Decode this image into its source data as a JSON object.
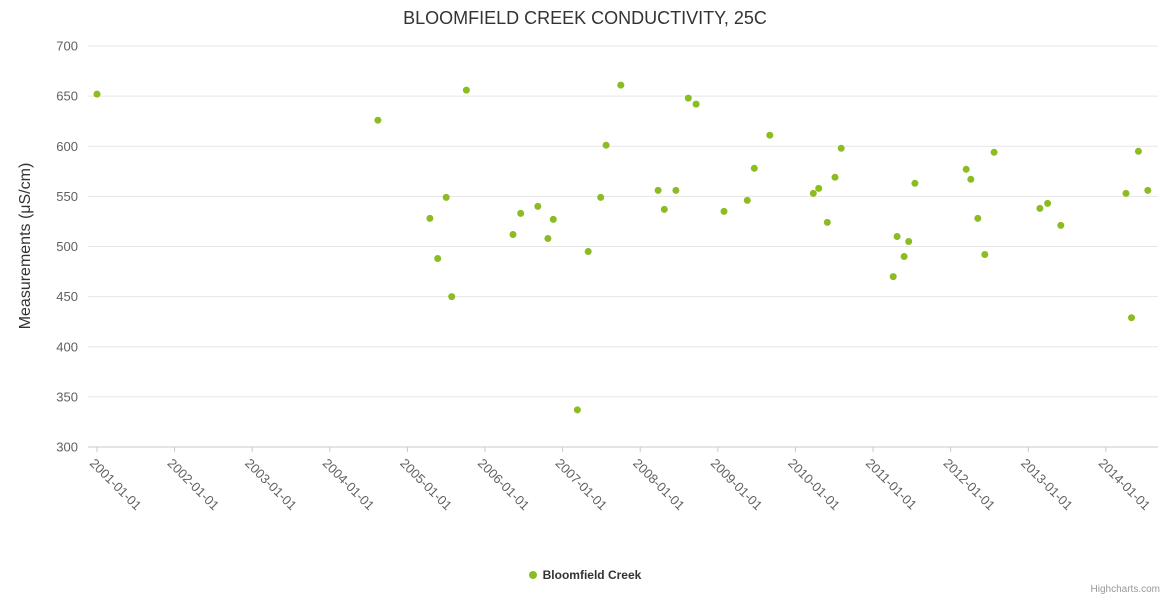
{
  "chart": {
    "title": "BLOOMFIELD CREEK CONDUCTIVITY, 25C",
    "series_name": "Bloomfield Creek",
    "credits": "Highcharts.com",
    "y_axis": {
      "title": "Measurements (μS/cm)"
    }
  },
  "chart_data": {
    "type": "scatter",
    "title": "BLOOMFIELD CREEK CONDUCTIVITY, 25C",
    "xlabel": "",
    "ylabel": "Measurements (μS/cm)",
    "grid": true,
    "legend_position": "bottom-center",
    "ylim": [
      300,
      700
    ],
    "xlim": [
      2000.884,
      2014.672
    ],
    "y_ticks": [
      300,
      350,
      400,
      450,
      500,
      550,
      600,
      650,
      700
    ],
    "x_ticks": [
      {
        "value": 2001,
        "label": "2001-01-01"
      },
      {
        "value": 2002,
        "label": "2002-01-01"
      },
      {
        "value": 2003,
        "label": "2003-01-01"
      },
      {
        "value": 2004,
        "label": "2004-01-01"
      },
      {
        "value": 2005,
        "label": "2005-01-01"
      },
      {
        "value": 2006,
        "label": "2006-01-01"
      },
      {
        "value": 2007,
        "label": "2007-01-01"
      },
      {
        "value": 2008,
        "label": "2008-01-01"
      },
      {
        "value": 2009,
        "label": "2009-01-01"
      },
      {
        "value": 2010,
        "label": "2010-01-01"
      },
      {
        "value": 2011,
        "label": "2011-01-01"
      },
      {
        "value": 2012,
        "label": "2012-01-01"
      },
      {
        "value": 2013,
        "label": "2013-01-01"
      },
      {
        "value": 2014,
        "label": "2014-01-01"
      }
    ],
    "x_format": "decimal_year",
    "series": [
      {
        "name": "Bloomfield Creek",
        "color": "#8bbc21",
        "points": [
          [
            2001.0,
            652
          ],
          [
            2004.62,
            626
          ],
          [
            2005.29,
            528
          ],
          [
            2005.39,
            488
          ],
          [
            2005.5,
            549
          ],
          [
            2005.57,
            450
          ],
          [
            2005.76,
            656
          ],
          [
            2006.36,
            512
          ],
          [
            2006.46,
            533
          ],
          [
            2006.68,
            540
          ],
          [
            2006.81,
            508
          ],
          [
            2006.88,
            527
          ],
          [
            2007.19,
            337
          ],
          [
            2007.33,
            495
          ],
          [
            2007.49,
            549
          ],
          [
            2007.56,
            601
          ],
          [
            2007.75,
            661
          ],
          [
            2008.23,
            556
          ],
          [
            2008.31,
            537
          ],
          [
            2008.46,
            556
          ],
          [
            2008.62,
            648
          ],
          [
            2008.72,
            642
          ],
          [
            2009.08,
            535
          ],
          [
            2009.38,
            546
          ],
          [
            2009.47,
            578
          ],
          [
            2009.67,
            611
          ],
          [
            2010.23,
            553
          ],
          [
            2010.3,
            558
          ],
          [
            2010.41,
            524
          ],
          [
            2010.51,
            569
          ],
          [
            2010.59,
            598
          ],
          [
            2011.26,
            470
          ],
          [
            2011.31,
            510
          ],
          [
            2011.4,
            490
          ],
          [
            2011.46,
            505
          ],
          [
            2011.54,
            563
          ],
          [
            2012.2,
            577
          ],
          [
            2012.26,
            567
          ],
          [
            2012.35,
            528
          ],
          [
            2012.44,
            492
          ],
          [
            2012.56,
            594
          ],
          [
            2013.15,
            538
          ],
          [
            2013.25,
            543
          ],
          [
            2013.42,
            521
          ],
          [
            2014.26,
            553
          ],
          [
            2014.33,
            429
          ],
          [
            2014.42,
            595
          ],
          [
            2014.54,
            556
          ]
        ]
      }
    ],
    "colors": {
      "point": "#8bbc21",
      "grid": "#e6e6e6",
      "axis_line": "#c9c9c9",
      "tick_label": "#606060",
      "title": "#333333"
    }
  }
}
